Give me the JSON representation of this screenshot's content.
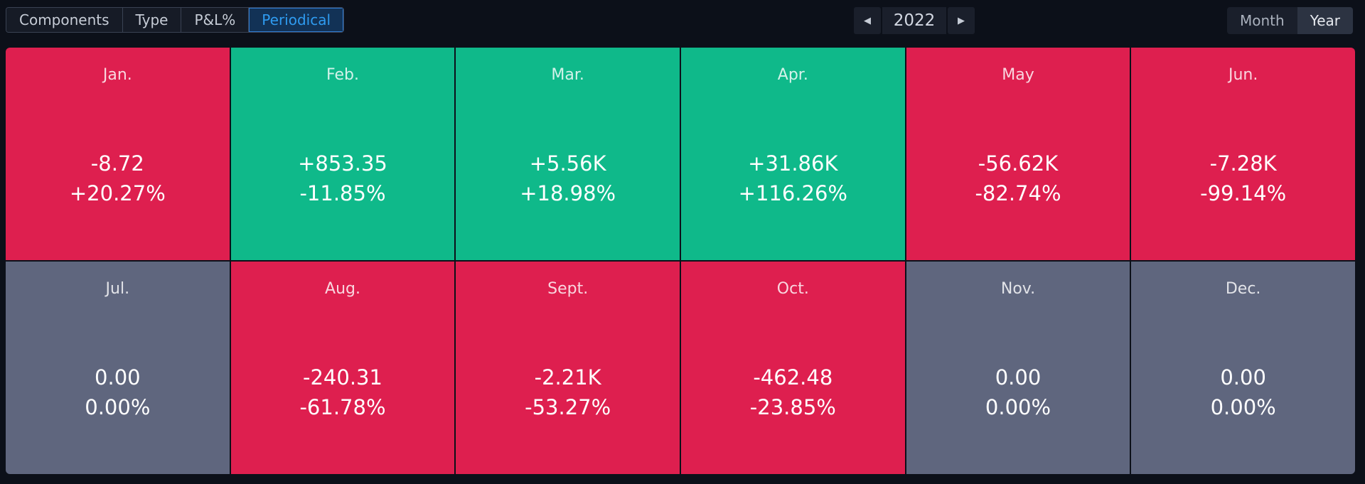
{
  "tabs": [
    {
      "label": "Components",
      "active": false
    },
    {
      "label": "Type",
      "active": false
    },
    {
      "label": "P&L%",
      "active": false
    },
    {
      "label": "Periodical",
      "active": true
    }
  ],
  "year_nav": {
    "prev_icon": "triangle-left",
    "year": "2022",
    "next_icon": "triangle-right"
  },
  "view_toggle": {
    "month_label": "Month",
    "year_label": "Year",
    "selected": "Year"
  },
  "colors": {
    "loss": "#de1f4f",
    "gain": "#0fb98a",
    "flat": "#5f667e",
    "active_tab_text": "#2f9bf0"
  },
  "months": [
    {
      "name": "Jan.",
      "pnl": "-8.72",
      "pct": "+20.27%",
      "status": "loss"
    },
    {
      "name": "Feb.",
      "pnl": "+853.35",
      "pct": "-11.85%",
      "status": "gain"
    },
    {
      "name": "Mar.",
      "pnl": "+5.56K",
      "pct": "+18.98%",
      "status": "gain"
    },
    {
      "name": "Apr.",
      "pnl": "+31.86K",
      "pct": "+116.26%",
      "status": "gain"
    },
    {
      "name": "May",
      "pnl": "-56.62K",
      "pct": "-82.74%",
      "status": "loss"
    },
    {
      "name": "Jun.",
      "pnl": "-7.28K",
      "pct": "-99.14%",
      "status": "loss"
    },
    {
      "name": "Jul.",
      "pnl": "0.00",
      "pct": "0.00%",
      "status": "flat"
    },
    {
      "name": "Aug.",
      "pnl": "-240.31",
      "pct": "-61.78%",
      "status": "loss"
    },
    {
      "name": "Sept.",
      "pnl": "-2.21K",
      "pct": "-53.27%",
      "status": "loss"
    },
    {
      "name": "Oct.",
      "pnl": "-462.48",
      "pct": "-23.85%",
      "status": "loss"
    },
    {
      "name": "Nov.",
      "pnl": "0.00",
      "pct": "0.00%",
      "status": "flat"
    },
    {
      "name": "Dec.",
      "pnl": "0.00",
      "pct": "0.00%",
      "status": "flat"
    }
  ]
}
